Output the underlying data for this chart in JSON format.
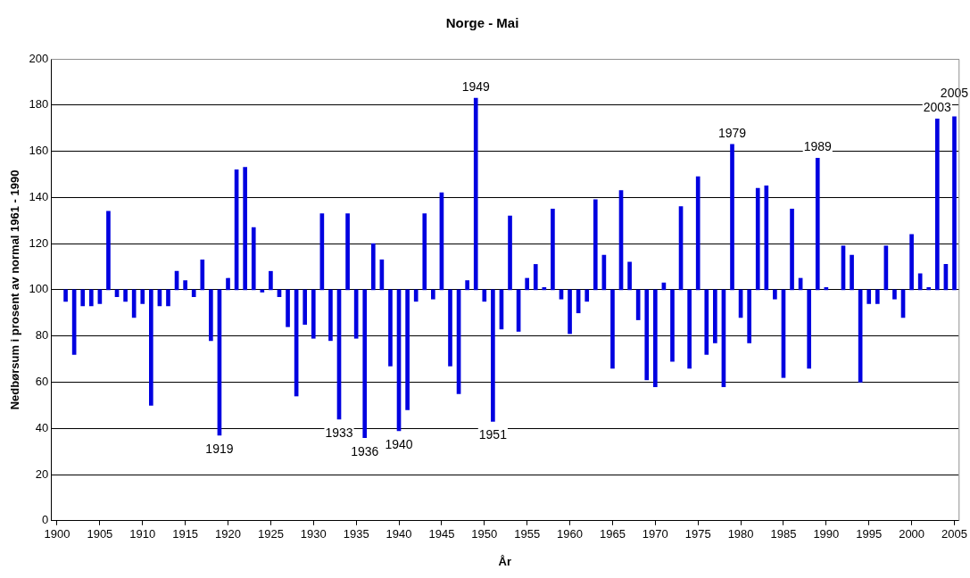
{
  "chart_data": {
    "type": "bar",
    "title": "Norge - Mai",
    "xlabel": "År",
    "ylabel": "Nedbørsum i prosent av normal 1961 - 1990",
    "x": [
      1901,
      1902,
      1903,
      1904,
      1905,
      1906,
      1907,
      1908,
      1909,
      1910,
      1911,
      1912,
      1913,
      1914,
      1915,
      1916,
      1917,
      1918,
      1919,
      1920,
      1921,
      1922,
      1923,
      1924,
      1925,
      1926,
      1927,
      1928,
      1929,
      1930,
      1931,
      1932,
      1933,
      1934,
      1935,
      1936,
      1937,
      1938,
      1939,
      1940,
      1941,
      1942,
      1943,
      1944,
      1945,
      1946,
      1947,
      1948,
      1949,
      1950,
      1951,
      1952,
      1953,
      1954,
      1955,
      1956,
      1957,
      1958,
      1959,
      1960,
      1961,
      1962,
      1963,
      1964,
      1965,
      1966,
      1967,
      1968,
      1969,
      1970,
      1971,
      1972,
      1973,
      1974,
      1975,
      1976,
      1977,
      1978,
      1979,
      1980,
      1981,
      1982,
      1983,
      1984,
      1985,
      1986,
      1987,
      1988,
      1989,
      1990,
      1992,
      1993,
      1994,
      1995,
      1996,
      1997,
      1998,
      1999,
      2000,
      2001,
      2002,
      2003,
      2004,
      2005
    ],
    "values": [
      -5,
      -28,
      -7,
      -7,
      -6,
      34,
      -3,
      -5,
      -12,
      -6,
      -50,
      -7,
      -7,
      8,
      4,
      -3,
      13,
      -22,
      -63,
      5,
      52,
      53,
      27,
      -1,
      8,
      -3,
      -16,
      -46,
      -15,
      -21,
      33,
      -22,
      -56,
      33,
      -21,
      -64,
      20,
      13,
      -33,
      -61,
      -52,
      -5,
      33,
      -4,
      42,
      -33,
      -45,
      4,
      83,
      -5,
      -57,
      -17,
      32,
      -18,
      5,
      11,
      1,
      35,
      -4,
      -19,
      -10,
      -5,
      39,
      15,
      -34,
      43,
      12,
      -13,
      -39,
      -42,
      3,
      -31,
      36,
      -34,
      49,
      -28,
      -23,
      -42,
      63,
      -12,
      -23,
      44,
      45,
      -4,
      -38,
      35,
      5,
      -34,
      57,
      1,
      19,
      15,
      -40,
      -6,
      -6,
      19,
      -4,
      -12,
      24,
      7,
      1,
      74,
      11,
      75
    ],
    "base": [
      100,
      100,
      100,
      100,
      100,
      100,
      100,
      100,
      100,
      100,
      100,
      100,
      100,
      100,
      100,
      100,
      100,
      100,
      100,
      100,
      100,
      100,
      100,
      100,
      100,
      100,
      100,
      100,
      100,
      100,
      100,
      100,
      100,
      100,
      100,
      100,
      100,
      100,
      100,
      100,
      100,
      100,
      100,
      100,
      100,
      100,
      100,
      100,
      100,
      100,
      100,
      100,
      100,
      100,
      100,
      100,
      100,
      100,
      100,
      100,
      100,
      100,
      100,
      100,
      100,
      100,
      100,
      100,
      100,
      100,
      100,
      100,
      100,
      100,
      100,
      100,
      100,
      100,
      100,
      100,
      100,
      100,
      100,
      100,
      100,
      100,
      100,
      100,
      100,
      100,
      100,
      100,
      100,
      100,
      100,
      100,
      100,
      100,
      100,
      100,
      100,
      100,
      100,
      100
    ],
    "color": "#0000e0",
    "xlim": [
      1899.3,
      2005.5
    ],
    "xticks": [
      1900,
      1905,
      1910,
      1915,
      1920,
      1925,
      1930,
      1935,
      1940,
      1945,
      1950,
      1955,
      1960,
      1965,
      1970,
      1975,
      1980,
      1985,
      1990,
      1995,
      2000,
      2005
    ],
    "ylim": [
      0,
      200
    ],
    "yticks": [
      0,
      20,
      40,
      60,
      80,
      100,
      120,
      140,
      160,
      180,
      200
    ],
    "grid": "y",
    "annotations": [
      {
        "text": "1919",
        "x": 1919,
        "y": 37
      },
      {
        "text": "1933",
        "x": 1933,
        "y": 44
      },
      {
        "text": "1936",
        "x": 1936,
        "y": 36
      },
      {
        "text": "1940",
        "x": 1940,
        "y": 39
      },
      {
        "text": "1949",
        "x": 1949,
        "y": 183
      },
      {
        "text": "1951",
        "x": 1951,
        "y": 43
      },
      {
        "text": "1979",
        "x": 1979,
        "y": 163
      },
      {
        "text": "1989",
        "x": 1989,
        "y": 157
      },
      {
        "text": "2003",
        "x": 2003,
        "y": 174
      },
      {
        "text": "2005",
        "x": 2005,
        "y": 175
      }
    ]
  }
}
